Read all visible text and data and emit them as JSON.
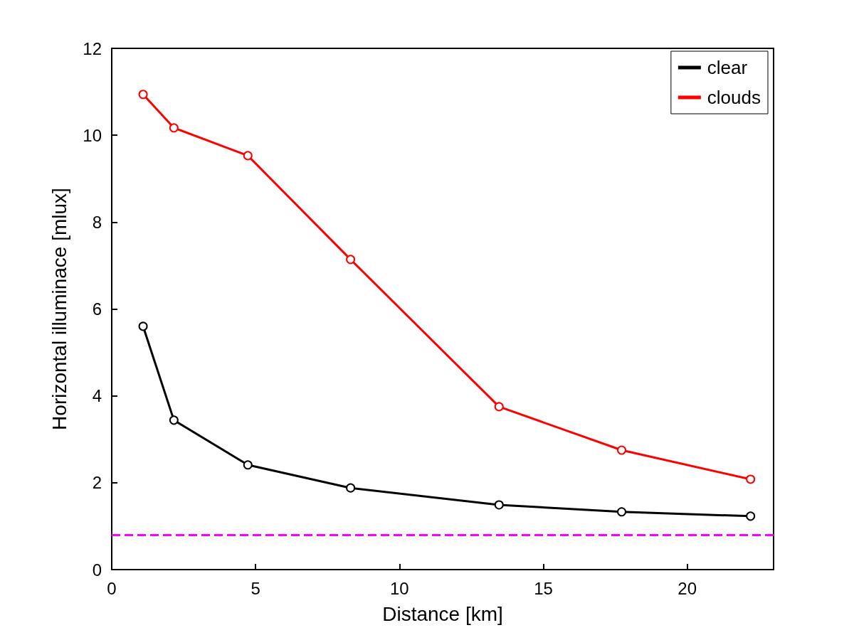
{
  "chart_data": {
    "type": "line",
    "xlabel": "Distance [km]",
    "ylabel": "Horizontal illuminace [mlux]",
    "xlim": [
      0,
      23
    ],
    "xticks": [
      0,
      5,
      10,
      15,
      20
    ],
    "ylim": [
      0,
      12
    ],
    "yticks": [
      0,
      2,
      4,
      6,
      8,
      10,
      12
    ],
    "x": [
      1.09,
      2.16,
      4.73,
      8.3,
      13.46,
      17.72,
      22.2
    ],
    "series": [
      {
        "name": "clear",
        "color": "#000000",
        "values": [
          5.6,
          3.44,
          2.41,
          1.88,
          1.49,
          1.33,
          1.23
        ]
      },
      {
        "name": "clouds",
        "color": "#ff0000",
        "values": [
          10.94,
          10.17,
          9.53,
          7.14,
          3.75,
          2.75,
          2.08
        ]
      }
    ],
    "ref_lines": [
      {
        "axis": "y",
        "value": 0.8,
        "color": "#ff00ff",
        "line_style": "dashed"
      }
    ],
    "marker": "circle",
    "line_style": "solid",
    "grid": false,
    "legend": "top right"
  }
}
